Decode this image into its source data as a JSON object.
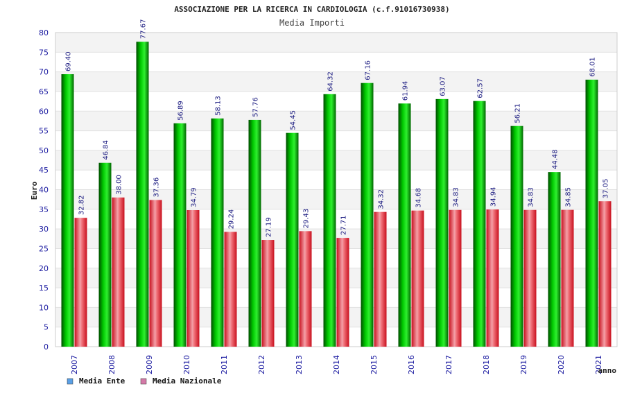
{
  "chart_data": {
    "type": "bar",
    "title": "ASSOCIAZIONE PER LA RICERCA IN CARDIOLOGIA (c.f.91016730938)",
    "subtitle": "Media Importi",
    "xlabel": "anno",
    "ylabel": "Euro",
    "ylim": [
      0,
      80
    ],
    "yticks": [
      0,
      5,
      10,
      15,
      20,
      25,
      30,
      35,
      40,
      45,
      50,
      55,
      60,
      65,
      70,
      75,
      80
    ],
    "grid": true,
    "legend_position": "bottom-left",
    "categories": [
      "2007",
      "2008",
      "2009",
      "2010",
      "2011",
      "2012",
      "2013",
      "2014",
      "2015",
      "2016",
      "2017",
      "2018",
      "2019",
      "2020",
      "2021"
    ],
    "series": [
      {
        "name": "Media Ente",
        "color": "#00b400",
        "legend_color": "#5aa0e6",
        "values": [
          69.4,
          46.84,
          77.67,
          56.89,
          58.13,
          57.76,
          54.45,
          64.32,
          67.16,
          61.94,
          63.07,
          62.57,
          56.21,
          44.48,
          68.01
        ],
        "labels": [
          "69.40",
          "46.84",
          "77.67",
          "56.89",
          "58.13",
          "57.76",
          "54.45",
          "64.32",
          "67.16",
          "61.94",
          "63.07",
          "62.57",
          "56.21",
          "44.48",
          "68.01"
        ]
      },
      {
        "name": "Media Nazionale",
        "color": "#e8303c",
        "legend_color": "#d47aa8",
        "values": [
          32.82,
          38.0,
          37.36,
          34.79,
          29.24,
          27.19,
          29.43,
          27.71,
          34.32,
          34.68,
          34.83,
          34.94,
          34.83,
          34.85,
          37.05
        ],
        "labels": [
          "32.82",
          "38.00",
          "37.36",
          "34.79",
          "29.24",
          "27.19",
          "29.43",
          "27.71",
          "34.32",
          "34.68",
          "34.83",
          "34.94",
          "34.83",
          "34.85",
          "37.05"
        ]
      }
    ]
  }
}
